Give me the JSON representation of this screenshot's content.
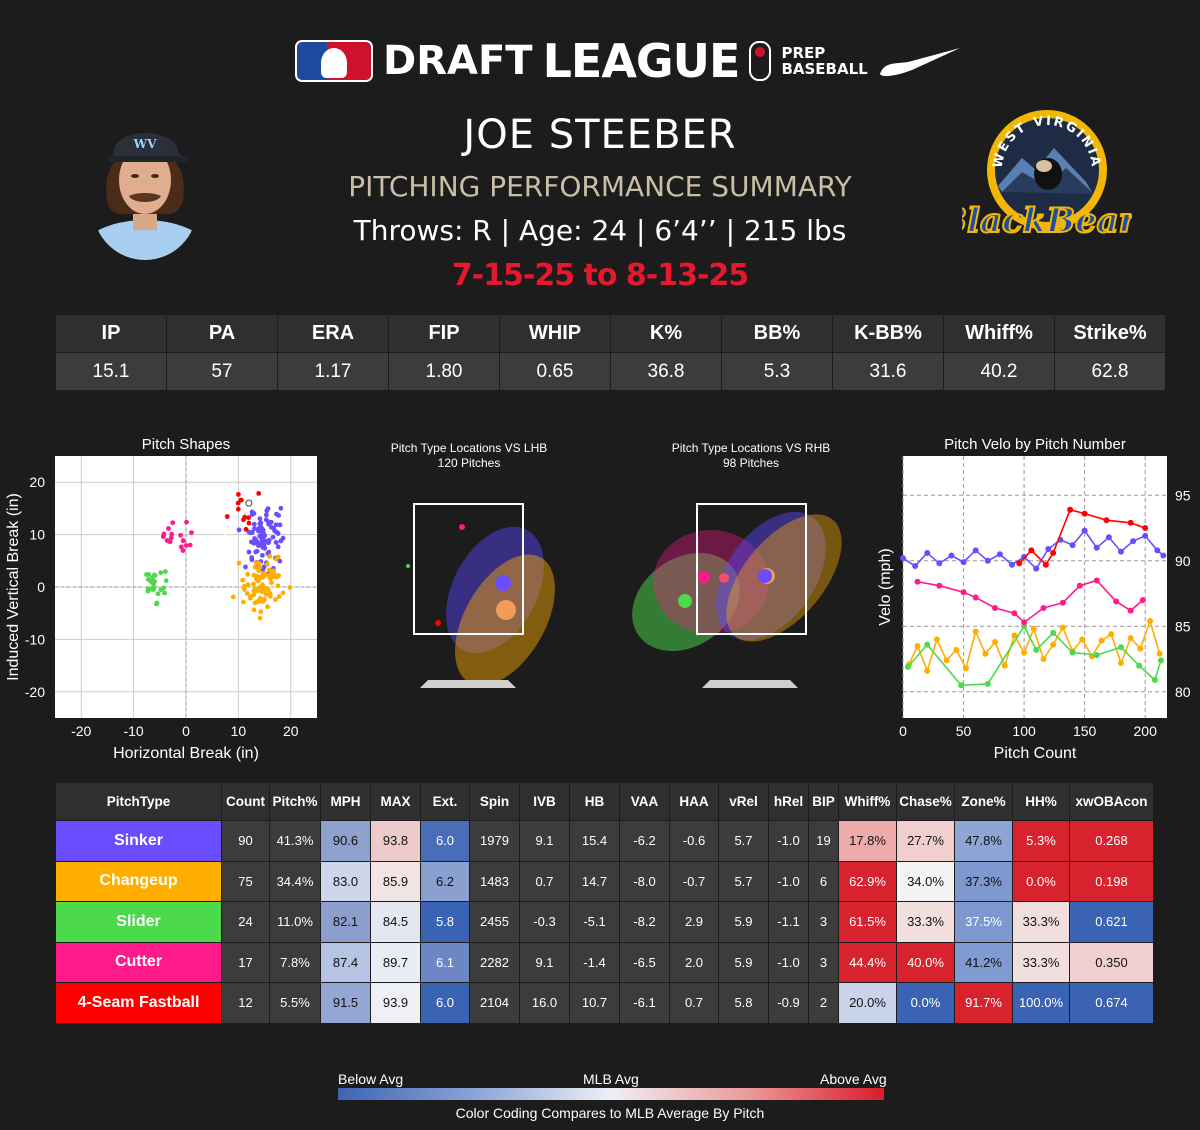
{
  "header": {
    "brand_draft": "DRAFT",
    "brand_league": "LEAGUE",
    "brand_prep": "PREP",
    "brand_baseball": "BASEBALL",
    "player_name": "JOE STEEBER",
    "subtitle": "PITCHING PERFORMANCE SUMMARY",
    "bio": "Throws: R | Age: 24 | 6’4’’ | 215 lbs",
    "dates": "7-15-25 to 8-13-25",
    "cap_logo": "WV",
    "team_logo_top": "WEST VIRGINIA",
    "team_logo_script": "BlackBears"
  },
  "colors": {
    "Sinker": "#6a4dff",
    "Changeup": "#ffae00",
    "Slider": "#4cd94c",
    "Cutter": "#ff1a8c",
    "4-Seam Fastball": "#ff0000",
    "accent_red": "#e5182e",
    "subtitle_tan": "#c9bfa6"
  },
  "stats": {
    "headers": [
      "IP",
      "PA",
      "ERA",
      "FIP",
      "WHIP",
      "K%",
      "BB%",
      "K-BB%",
      "Whiff%",
      "Strike%"
    ],
    "values": [
      "15.1",
      "57",
      "1.17",
      "1.80",
      "0.65",
      "36.8",
      "5.3",
      "31.6",
      "40.2",
      "62.8"
    ]
  },
  "chart_data": [
    {
      "type": "scatter",
      "title": "Pitch Shapes",
      "xlabel": "Horizontal Break (in)",
      "ylabel": "Induced Vertical Break (in)",
      "xlim": [
        -25,
        25
      ],
      "ylim": [
        -25,
        25
      ],
      "xticks": [
        "-20",
        "-10",
        "0",
        "10",
        "20"
      ],
      "yticks": [
        "20",
        "10",
        "0",
        "-10",
        "-20"
      ],
      "grid": true,
      "arm_angle_line": {
        "from": [
          0,
          0
        ],
        "to": [
          12,
          16
        ]
      },
      "series": [
        {
          "name": "Sinker",
          "center": [
            15.4,
            9.1
          ],
          "spread": [
            2.6,
            4.2
          ],
          "count": 90
        },
        {
          "name": "Changeup",
          "center": [
            14.7,
            0.7
          ],
          "spread": [
            3.0,
            3.2
          ],
          "count": 75
        },
        {
          "name": "Slider",
          "center": [
            -5.1,
            -0.3
          ],
          "spread": [
            1.8,
            3.0
          ],
          "count": 24
        },
        {
          "name": "Cutter",
          "center": [
            -1.4,
            9.1
          ],
          "spread": [
            2.2,
            2.0
          ],
          "count": 17
        },
        {
          "name": "4-Seam Fastball",
          "center": [
            10.7,
            16.0
          ],
          "spread": [
            2.2,
            2.5
          ],
          "count": 12
        }
      ]
    },
    {
      "type": "scatter",
      "title": "Pitch Type Locations VS LHB",
      "subtitle": "120 Pitches",
      "series": [
        {
          "name": "Sinker",
          "mean": [
            0.35,
            0.55
          ],
          "ellipse": [
            0.42,
            0.55,
            28
          ]
        },
        {
          "name": "Changeup",
          "mean": [
            0.45,
            0.8
          ],
          "ellipse": [
            0.38,
            0.6,
            32
          ]
        },
        {
          "name": "4-Seam Fastball",
          "points": [
            [
              -0.2,
              0.2
            ],
            [
              -0.5,
              2.5
            ],
            [
              0.2,
              3.1
            ]
          ]
        },
        {
          "name": "Slider",
          "points": [
            [
              -2.0,
              1.8
            ]
          ]
        }
      ]
    },
    {
      "type": "scatter",
      "title": "Pitch Type Locations VS RHB",
      "subtitle": "98 Pitches",
      "series": [
        {
          "name": "Sinker",
          "mean": [
            0.2,
            2.0
          ]
        },
        {
          "name": "Changeup",
          "mean": [
            0.6,
            2.3
          ]
        },
        {
          "name": "Slider",
          "mean": [
            -0.9,
            1.1
          ]
        },
        {
          "name": "Cutter",
          "mean": [
            -0.4,
            1.4
          ]
        },
        {
          "name": "4-Seam Fastball",
          "mean": [
            -0.1,
            2.0
          ]
        }
      ]
    },
    {
      "type": "line",
      "title": "Pitch Velo by Pitch Number",
      "xlabel": "Pitch Count",
      "ylabel": "Velo (mph)",
      "xlim": [
        0,
        218
      ],
      "ylim": [
        78,
        98
      ],
      "xticks": [
        "0",
        "50",
        "100",
        "150",
        "200"
      ],
      "yticks": [
        "95",
        "90",
        "85",
        "80"
      ],
      "grid": true,
      "series": [
        {
          "name": "Sinker",
          "x": [
            0,
            10,
            20,
            30,
            40,
            50,
            60,
            70,
            80,
            90,
            100,
            110,
            120,
            130,
            140,
            150,
            160,
            170,
            180,
            190,
            200,
            210,
            215
          ],
          "y": [
            90.2,
            89.6,
            90.6,
            89.8,
            90.4,
            89.9,
            90.8,
            90.0,
            90.5,
            89.7,
            90.3,
            89.4,
            90.9,
            91.6,
            91.2,
            92.3,
            91.0,
            91.8,
            90.7,
            91.5,
            91.9,
            90.8,
            90.4
          ]
        },
        {
          "name": "Changeup",
          "x": [
            5,
            12,
            20,
            28,
            36,
            44,
            52,
            60,
            68,
            76,
            84,
            92,
            100,
            108,
            116,
            124,
            132,
            140,
            148,
            156,
            164,
            172,
            180,
            188,
            196,
            204,
            212
          ],
          "y": [
            82.1,
            83.5,
            81.6,
            84.0,
            82.4,
            83.2,
            81.8,
            84.6,
            82.9,
            83.8,
            82.0,
            84.3,
            83.0,
            84.8,
            82.5,
            83.6,
            84.9,
            83.1,
            84.0,
            82.7,
            83.9,
            84.4,
            82.2,
            84.1,
            83.3,
            85.4,
            82.9
          ]
        },
        {
          "name": "Slider",
          "x": [
            4,
            20,
            48,
            70,
            100,
            110,
            124,
            140,
            160,
            180,
            195,
            208,
            213
          ],
          "y": [
            81.9,
            83.6,
            80.5,
            80.6,
            85.0,
            83.2,
            84.5,
            83.0,
            82.8,
            83.4,
            82.0,
            80.9,
            82.4
          ]
        },
        {
          "name": "Cutter",
          "x": [
            12,
            30,
            50,
            60,
            76,
            92,
            100,
            116,
            132,
            146,
            160,
            176,
            188,
            198
          ],
          "y": [
            88.4,
            88.1,
            87.6,
            87.2,
            86.4,
            86.0,
            85.3,
            86.4,
            86.8,
            88.1,
            88.5,
            86.9,
            86.2,
            87.0
          ]
        },
        {
          "name": "4-Seam Fastball",
          "x": [
            96,
            106,
            118,
            124,
            138,
            150,
            168,
            188,
            200
          ],
          "y": [
            89.8,
            90.8,
            89.7,
            90.6,
            93.9,
            93.6,
            93.1,
            92.9,
            92.5
          ]
        }
      ]
    }
  ],
  "pitch_table": {
    "headers": [
      "PitchType",
      "Count",
      "Pitch%",
      "MPH",
      "MAX",
      "Ext.",
      "Spin",
      "IVB",
      "HB",
      "VAA",
      "HAA",
      "vRel",
      "hRel",
      "BIP",
      "Whiff%",
      "Chase%",
      "Zone%",
      "HH%",
      "xwOBAcon"
    ],
    "rows": [
      {
        "name": "Sinker",
        "cells": [
          "90",
          "41.3%",
          "90.6",
          "93.8",
          "6.0",
          "1979",
          "9.1",
          "15.4",
          "-6.2",
          "-0.6",
          "5.7",
          "-1.0",
          "19",
          "17.8%",
          "27.7%",
          "47.8%",
          "5.3%",
          "0.268"
        ],
        "shade": {
          "MPH": "#8ea0cc",
          "MAX": "#eecbcb",
          "Ext.": "#4a6db8",
          "Whiff%": "#ecaaaa",
          "Chase%": "#f1cfcf",
          "Zone%": "#8ea6d6",
          "HH%": "#d8232f",
          "xwOBAcon": "#d8232f"
        }
      },
      {
        "name": "Changeup",
        "cells": [
          "75",
          "34.4%",
          "83.0",
          "85.9",
          "6.2",
          "1483",
          "0.7",
          "14.7",
          "-8.0",
          "-0.7",
          "5.7",
          "-1.0",
          "6",
          "62.9%",
          "34.0%",
          "37.3%",
          "0.0%",
          "0.198"
        ],
        "shade": {
          "MPH": "#cdd6ea",
          "MAX": "#f3e4e4",
          "Ext.": "#8aa0d0",
          "Whiff%": "#d8232f",
          "Chase%": "#f4f4f6",
          "Zone%": "#7e99d0",
          "HH%": "#d8232f",
          "xwOBAcon": "#d8232f"
        }
      },
      {
        "name": "Slider",
        "cells": [
          "24",
          "11.0%",
          "82.1",
          "84.5",
          "5.8",
          "2455",
          "-0.3",
          "-5.1",
          "-8.2",
          "2.9",
          "5.9",
          "-1.1",
          "3",
          "61.5%",
          "33.3%",
          "37.5%",
          "33.3%",
          "0.621"
        ],
        "shade": {
          "MPH": "#8c9fcc",
          "MAX": "#e3e7f2",
          "Ext.": "#3a63b4",
          "Whiff%": "#d8232f",
          "Chase%": "#f3dfdf",
          "Zone%": "#7c98cf",
          "HH%": "#f1dede",
          "xwOBAcon": "#3a63b4"
        }
      },
      {
        "name": "Cutter",
        "cells": [
          "17",
          "7.8%",
          "87.4",
          "89.7",
          "6.1",
          "2282",
          "9.1",
          "-1.4",
          "-6.5",
          "2.0",
          "5.9",
          "-1.0",
          "3",
          "44.4%",
          "40.0%",
          "41.2%",
          "33.3%",
          "0.350"
        ],
        "shade": {
          "MPH": "#b6c4e4",
          "MAX": "#e8ecf5",
          "Ext.": "#6c86c6",
          "Whiff%": "#d8232f",
          "Chase%": "#d8232f",
          "Zone%": "#7f9bd2",
          "HH%": "#f1dede",
          "xwOBAcon": "#f0cfcf"
        }
      },
      {
        "name": "4-Seam Fastball",
        "cells": [
          "12",
          "5.5%",
          "91.5",
          "93.9",
          "6.0",
          "2104",
          "16.0",
          "10.7",
          "-6.1",
          "0.7",
          "5.8",
          "-0.9",
          "2",
          "20.0%",
          "0.0%",
          "91.7%",
          "100.0%",
          "0.674"
        ],
        "shade": {
          "MPH": "#94a7d4",
          "MAX": "#eef0f6",
          "Ext.": "#3a63b4",
          "Whiff%": "#c9d4ea",
          "Chase%": "#3a63b4",
          "Zone%": "#d8232f",
          "HH%": "#3a63b4",
          "xwOBAcon": "#3a63b4"
        }
      }
    ]
  },
  "legend": {
    "below": "Below Avg",
    "mid": "MLB Avg",
    "above": "Above Avg",
    "caption": "Color Coding Compares to MLB Average By Pitch"
  }
}
